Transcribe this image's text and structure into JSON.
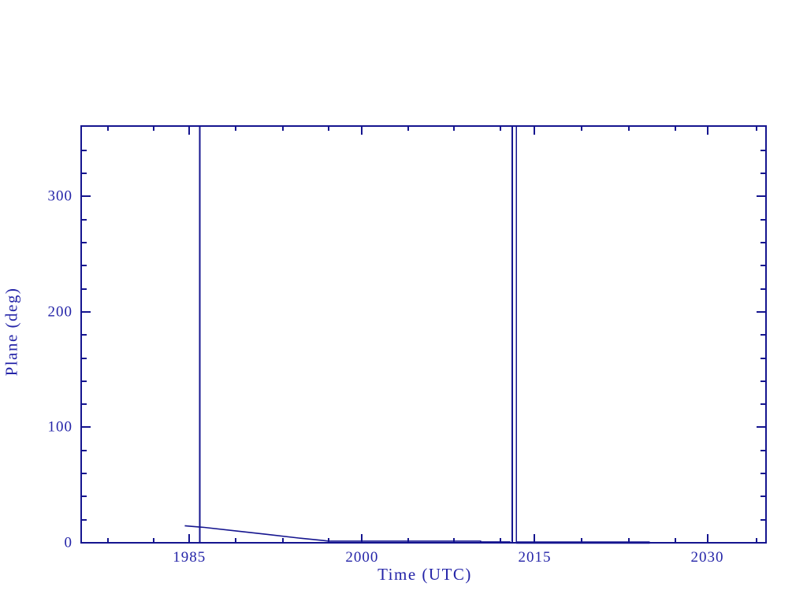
{
  "window": {
    "background": "#ffffff"
  },
  "colors": {
    "axis": "#15158f",
    "line": "#15158f",
    "text": "#2424a8"
  },
  "chart_data": {
    "type": "line",
    "title": "",
    "xlabel": "Time (UTC)",
    "ylabel": "Plane (deg)",
    "xlim": [
      1975.6,
      2035.1
    ],
    "ylim": [
      0,
      361
    ],
    "grid": false,
    "legend": "none",
    "x_major_ticks": [
      {
        "value": 1985,
        "label": "1985"
      },
      {
        "value": 2000,
        "label": "2000"
      },
      {
        "value": 2015,
        "label": "2015"
      },
      {
        "value": 2030,
        "label": "2030"
      }
    ],
    "x_minor_ticks": [
      1977.9,
      1981.9,
      1989.0,
      1993.1,
      1997.1,
      2004.0,
      2008.0,
      2012.0,
      2019.1,
      2023.2,
      2027.2,
      2034.3
    ],
    "y_major_ticks": [
      {
        "value": 0,
        "label": "0"
      },
      {
        "value": 100,
        "label": "100"
      },
      {
        "value": 200,
        "label": "200"
      },
      {
        "value": 300,
        "label": "300"
      }
    ],
    "y_minor_ticks": [
      20,
      40,
      60,
      80,
      120,
      140,
      160,
      180,
      220,
      240,
      260,
      280,
      320,
      340
    ],
    "series": [
      {
        "name": "plane-angle-declining",
        "width": 1.6,
        "points": [
          [
            1984.6,
            14.7
          ],
          [
            1986.3,
            13.3
          ],
          [
            1989.1,
            10.2
          ],
          [
            1991.8,
            7.2
          ],
          [
            1994.5,
            4.1
          ],
          [
            1996.6,
            2.0
          ],
          [
            1997.1,
            1.4
          ],
          [
            2010.3,
            1.4
          ],
          [
            2010.3,
            0.7
          ],
          [
            2012.9,
            0.7
          ]
        ]
      },
      {
        "name": "plane-angle-post-2013",
        "width": 3,
        "points": [
          [
            2013.4,
            0.2
          ],
          [
            2025.0,
            0.2
          ]
        ]
      }
    ],
    "vlines": [
      {
        "name": "event-line-1986",
        "x": 1985.9
      },
      {
        "name": "event-line-2013a",
        "x": 2013.05
      },
      {
        "name": "event-line-2013b",
        "x": 2013.42
      }
    ]
  }
}
